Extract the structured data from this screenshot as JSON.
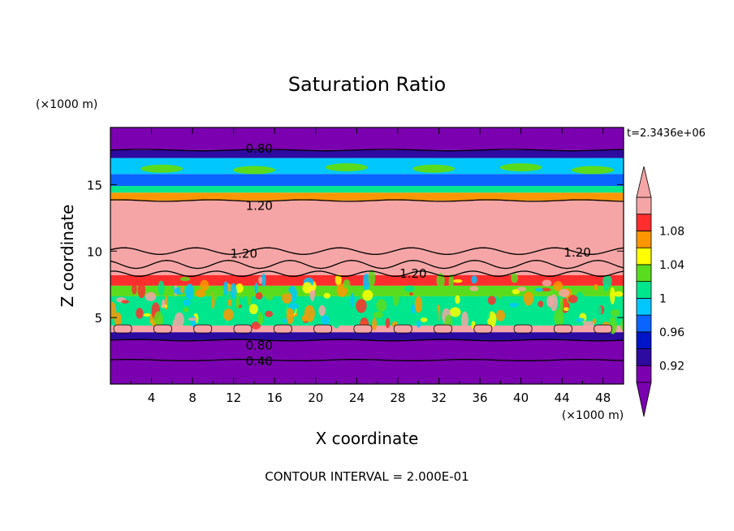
{
  "chart_data": {
    "type": "heatmap",
    "title": "Saturation Ratio",
    "xlabel": "X coordinate",
    "ylabel": "Z coordinate",
    "x_unit": "(×1000 m)",
    "y_unit": "(×1000 m)",
    "time_label": "t=2.3436e+06",
    "footer": "CONTOUR INTERVAL = 2.000E-01",
    "xlim": [
      0,
      50
    ],
    "ylim": [
      0,
      19.3
    ],
    "x_ticks": [
      "4",
      "8",
      "12",
      "16",
      "20",
      "24",
      "28",
      "32",
      "36",
      "40",
      "44",
      "48"
    ],
    "y_ticks": [
      "5",
      "10",
      "15"
    ],
    "colorbar": {
      "levels": [
        0.9,
        0.92,
        0.94,
        0.96,
        0.98,
        1.0,
        1.02,
        1.04,
        1.06,
        1.08,
        1.1
      ],
      "tick_labels": [
        "0.92",
        "0.96",
        "1",
        "1.04",
        "1.08"
      ],
      "colors": [
        "#7b00b0",
        "#2d0aa0",
        "#0014c8",
        "#0a64ff",
        "#00c8ff",
        "#00e68c",
        "#5adc1e",
        "#ffff00",
        "#ff9600",
        "#ff2d2d",
        "#f5a5a5"
      ],
      "extend": "both"
    },
    "bands": [
      {
        "z0": 0.0,
        "z1": 3.3,
        "color": "#7b00b0"
      },
      {
        "z0": 3.3,
        "z1": 3.9,
        "color": "#2d0aa0"
      },
      {
        "z0": 3.9,
        "z1": 4.4,
        "color": "#f5a5a5"
      },
      {
        "z0": 4.4,
        "z1": 6.6,
        "color": "#00e68c"
      },
      {
        "z0": 6.6,
        "z1": 7.4,
        "color": "#5adc1e"
      },
      {
        "z0": 7.4,
        "z1": 8.2,
        "color": "#ff2d2d"
      },
      {
        "z0": 8.2,
        "z1": 13.8,
        "color": "#f5a5a5"
      },
      {
        "z0": 13.8,
        "z1": 14.4,
        "color": "#ff9600"
      },
      {
        "z0": 14.4,
        "z1": 14.9,
        "color": "#00e68c"
      },
      {
        "z0": 14.9,
        "z1": 15.8,
        "color": "#0a64ff"
      },
      {
        "z0": 15.8,
        "z1": 17.0,
        "color": "#00c8ff"
      },
      {
        "z0": 17.0,
        "z1": 17.6,
        "color": "#2d0aa0"
      },
      {
        "z0": 17.6,
        "z1": 19.3,
        "color": "#7b00b0"
      }
    ],
    "contour_labels": [
      {
        "text": "0.80",
        "x": 14.5,
        "z": 17.7
      },
      {
        "text": "1.20",
        "x": 14.5,
        "z": 13.4
      },
      {
        "text": "1.20",
        "x": 13.0,
        "z": 9.8
      },
      {
        "text": "1.20",
        "x": 29.5,
        "z": 8.3
      },
      {
        "text": "1.20",
        "x": 45.5,
        "z": 9.9
      },
      {
        "text": "0.80",
        "x": 14.5,
        "z": 2.9
      },
      {
        "text": "0.40",
        "x": 14.5,
        "z": 1.7
      }
    ]
  }
}
